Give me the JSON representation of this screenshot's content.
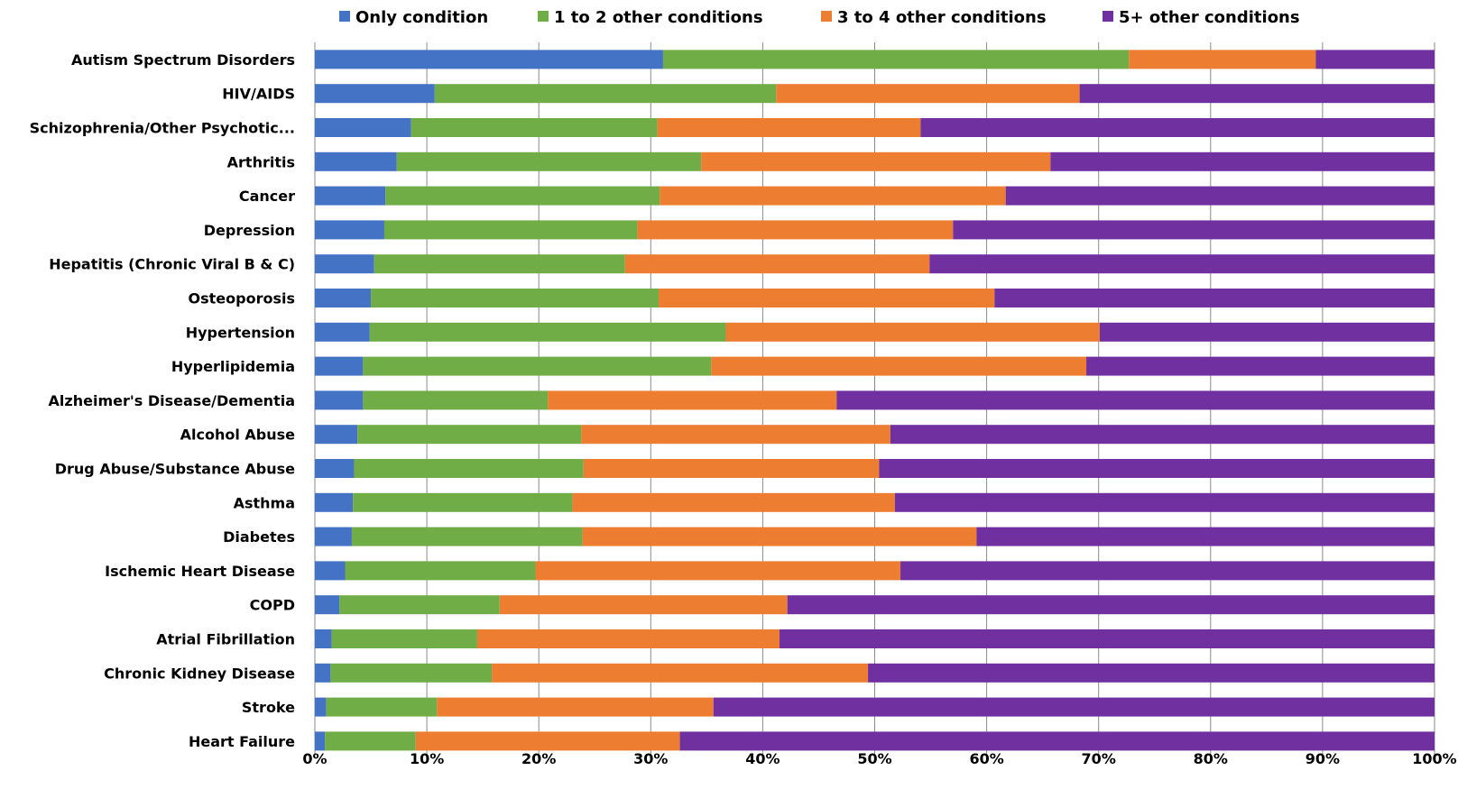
{
  "chart_data": {
    "type": "bar",
    "orientation": "horizontal",
    "stacked": true,
    "title": "",
    "xlabel": "",
    "ylabel": "",
    "xlim": [
      0,
      100
    ],
    "x_ticks": [
      "0%",
      "10%",
      "20%",
      "30%",
      "40%",
      "50%",
      "60%",
      "70%",
      "80%",
      "90%",
      "100%"
    ],
    "grid": "vertical",
    "legend": "top",
    "categories": [
      "Autism Spectrum Disorders",
      "HIV/AIDS",
      "Schizophrenia/Other Psychotic...",
      "Arthritis",
      "Cancer",
      "Depression",
      "Hepatitis (Chronic Viral B & C)",
      "Osteoporosis",
      "Hypertension",
      "Hyperlipidemia",
      "Alzheimer's Disease/Dementia",
      "Alcohol Abuse",
      "Drug Abuse/Substance Abuse",
      "Asthma",
      "Diabetes",
      "Ischemic Heart Disease",
      "COPD",
      "Atrial Fibrillation",
      "Chronic Kidney Disease",
      "Stroke",
      "Heart Failure"
    ],
    "series": [
      {
        "name": "Only condition",
        "color": "#4472c4",
        "values": [
          31.1,
          10.7,
          8.6,
          7.3,
          6.3,
          6.2,
          5.3,
          5.0,
          4.9,
          4.3,
          4.3,
          3.8,
          3.5,
          3.4,
          3.3,
          2.7,
          2.2,
          1.5,
          1.4,
          1.0,
          0.9
        ]
      },
      {
        "name": "1 to 2 other conditions",
        "color": "#70ad47",
        "values": [
          41.6,
          30.5,
          22.0,
          27.2,
          24.5,
          22.6,
          22.4,
          25.7,
          31.8,
          31.1,
          16.5,
          20.0,
          20.5,
          19.6,
          20.6,
          17.0,
          14.3,
          13.0,
          14.4,
          9.9,
          8.1
        ]
      },
      {
        "name": "3 to 4 other conditions",
        "color": "#ed7d31",
        "values": [
          16.7,
          27.1,
          23.5,
          31.2,
          30.9,
          28.2,
          27.2,
          30.0,
          33.4,
          33.5,
          25.8,
          27.6,
          26.4,
          28.8,
          35.2,
          32.6,
          25.7,
          27.0,
          33.6,
          24.7,
          23.6
        ]
      },
      {
        "name": "5+ other conditions",
        "color": "#7030a0",
        "values": [
          10.6,
          31.7,
          45.9,
          34.3,
          38.3,
          43.0,
          45.1,
          39.3,
          29.9,
          31.1,
          53.4,
          48.6,
          49.6,
          48.2,
          40.9,
          47.7,
          57.8,
          58.5,
          50.6,
          64.4,
          67.4
        ]
      }
    ]
  }
}
